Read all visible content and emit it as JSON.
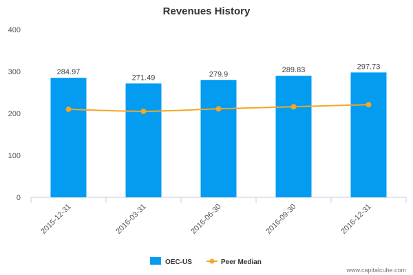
{
  "colors": {
    "bar": "#039CF1",
    "line": "#F5A623",
    "axis": "#C0D0E0",
    "text": "#555555"
  },
  "chart_data": {
    "type": "bar",
    "title": "Revenues History",
    "categories": [
      "2015-12-31",
      "2016-03-31",
      "2016-06-30",
      "2016-09-30",
      "2016-12-31"
    ],
    "series": [
      {
        "name": "OEC-US",
        "type": "bar",
        "values": [
          284.97,
          271.49,
          279.9,
          289.83,
          297.73
        ],
        "data_labels": [
          "284.97",
          "271.49",
          "279.9",
          "289.83",
          "297.73"
        ]
      },
      {
        "name": "Peer Median",
        "type": "line",
        "values": [
          210,
          205,
          211,
          216,
          221
        ]
      }
    ],
    "ylim": [
      0,
      400
    ],
    "yticks": [
      0,
      100,
      200,
      300,
      400
    ],
    "xlabel": "",
    "ylabel": "",
    "grid": false,
    "legend_position": "bottom-center"
  },
  "footer": {
    "credit": "www.capitalcube.com"
  }
}
